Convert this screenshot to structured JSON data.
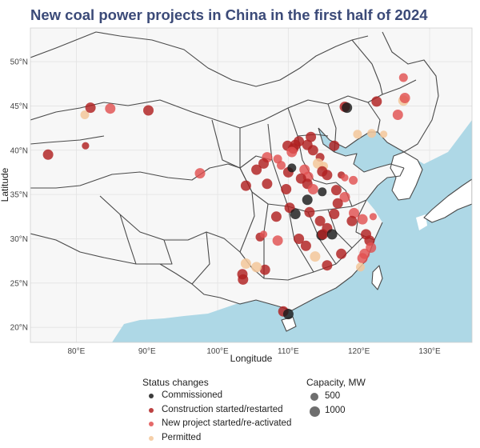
{
  "title": "New coal power projects in China in the first half of 2024",
  "axes": {
    "x_title": "Longitude",
    "y_title": "Latitude",
    "x_range": [
      73.5,
      136
    ],
    "y_range": [
      18.3,
      53.8
    ],
    "x_ticks": [
      {
        "value": 80,
        "label": "80°E"
      },
      {
        "value": 90,
        "label": "90°E"
      },
      {
        "value": 100,
        "label": "100°E"
      },
      {
        "value": 110,
        "label": "110°E"
      },
      {
        "value": 120,
        "label": "120°E"
      },
      {
        "value": 130,
        "label": "130°E"
      }
    ],
    "y_ticks": [
      {
        "value": 20,
        "label": "20°N"
      },
      {
        "value": 25,
        "label": "25°N"
      },
      {
        "value": 30,
        "label": "30°N"
      },
      {
        "value": 35,
        "label": "35°N"
      },
      {
        "value": 40,
        "label": "40°N"
      },
      {
        "value": 45,
        "label": "45°N"
      },
      {
        "value": 50,
        "label": "50°N"
      }
    ],
    "grid": true
  },
  "colors": {
    "land": "#ffffff",
    "sea": "#aed8e6",
    "border": "#4a4a4a",
    "grid": "#e3e3e3",
    "panel_bg": "#f7f7f7"
  },
  "legend": {
    "status_title": "Status changes",
    "status_items": [
      {
        "key": "commissioned",
        "label": "Commissioned",
        "color": "#1a1a1a"
      },
      {
        "key": "construction",
        "label": "Construction started/restarted",
        "color": "#b02020"
      },
      {
        "key": "new",
        "label": "New project started/re-activated",
        "color": "#e05050"
      },
      {
        "key": "permitted",
        "label": "Permitted",
        "color": "#f3c79a"
      }
    ],
    "capacity_title": "Capacity, MW",
    "capacity_items": [
      {
        "label": "500",
        "value": 500
      },
      {
        "label": "1000",
        "value": 1000
      }
    ]
  },
  "chart_data": {
    "type": "scatter",
    "title": "New coal power projects in China in the first half of 2024",
    "xlabel": "Longitude",
    "ylabel": "Latitude",
    "xlim": [
      73.5,
      136
    ],
    "ylim": [
      18.3,
      53.8
    ],
    "size_variable": "Capacity, MW",
    "color_variable": "Status changes",
    "points": [
      {
        "lon": 76.0,
        "lat": 39.5,
        "status": "construction",
        "mw": 1000
      },
      {
        "lon": 81.2,
        "lat": 44.0,
        "status": "permitted",
        "mw": 600
      },
      {
        "lon": 82.0,
        "lat": 44.8,
        "status": "construction",
        "mw": 1000
      },
      {
        "lon": 84.8,
        "lat": 44.7,
        "status": "new",
        "mw": 1000
      },
      {
        "lon": 90.2,
        "lat": 44.5,
        "status": "construction",
        "mw": 1000
      },
      {
        "lon": 81.3,
        "lat": 40.5,
        "status": "construction",
        "mw": 300
      },
      {
        "lon": 97.5,
        "lat": 37.4,
        "status": "new",
        "mw": 1000
      },
      {
        "lon": 118.0,
        "lat": 44.9,
        "status": "construction",
        "mw": 1000
      },
      {
        "lon": 118.3,
        "lat": 44.8,
        "status": "commissioned",
        "mw": 1000
      },
      {
        "lon": 122.5,
        "lat": 45.5,
        "status": "construction",
        "mw": 1000
      },
      {
        "lon": 126.3,
        "lat": 48.2,
        "status": "new",
        "mw": 600
      },
      {
        "lon": 126.3,
        "lat": 45.6,
        "status": "permitted",
        "mw": 1000
      },
      {
        "lon": 126.5,
        "lat": 45.9,
        "status": "new",
        "mw": 1000
      },
      {
        "lon": 125.5,
        "lat": 44.0,
        "status": "new",
        "mw": 1000
      },
      {
        "lon": 123.5,
        "lat": 41.8,
        "status": "permitted",
        "mw": 300
      },
      {
        "lon": 121.8,
        "lat": 41.9,
        "status": "permitted",
        "mw": 600
      },
      {
        "lon": 119.8,
        "lat": 41.8,
        "status": "permitted",
        "mw": 600
      },
      {
        "lon": 116.5,
        "lat": 40.5,
        "status": "construction",
        "mw": 1000
      },
      {
        "lon": 113.2,
        "lat": 41.5,
        "status": "construction",
        "mw": 1000
      },
      {
        "lon": 112.7,
        "lat": 40.6,
        "status": "construction",
        "mw": 1000
      },
      {
        "lon": 111.5,
        "lat": 41.0,
        "status": "construction",
        "mw": 1000
      },
      {
        "lon": 111.0,
        "lat": 40.6,
        "status": "construction",
        "mw": 1000
      },
      {
        "lon": 110.7,
        "lat": 40.2,
        "status": "construction",
        "mw": 1000
      },
      {
        "lon": 109.9,
        "lat": 40.5,
        "status": "construction",
        "mw": 1000
      },
      {
        "lon": 110.5,
        "lat": 39.8,
        "status": "new",
        "mw": 1000
      },
      {
        "lon": 107.0,
        "lat": 39.2,
        "status": "new",
        "mw": 1000
      },
      {
        "lon": 106.5,
        "lat": 38.5,
        "status": "construction",
        "mw": 1000
      },
      {
        "lon": 105.5,
        "lat": 37.8,
        "status": "construction",
        "mw": 1000
      },
      {
        "lon": 108.5,
        "lat": 39.0,
        "status": "new",
        "mw": 600
      },
      {
        "lon": 109.0,
        "lat": 38.3,
        "status": "new",
        "mw": 600
      },
      {
        "lon": 110.0,
        "lat": 37.5,
        "status": "construction",
        "mw": 1000
      },
      {
        "lon": 110.5,
        "lat": 38.0,
        "status": "commissioned",
        "mw": 600
      },
      {
        "lon": 112.3,
        "lat": 37.8,
        "status": "new",
        "mw": 1000
      },
      {
        "lon": 113.5,
        "lat": 40.0,
        "status": "construction",
        "mw": 1000
      },
      {
        "lon": 114.5,
        "lat": 39.2,
        "status": "construction",
        "mw": 600
      },
      {
        "lon": 114.2,
        "lat": 38.5,
        "status": "permitted",
        "mw": 1000
      },
      {
        "lon": 115.0,
        "lat": 38.2,
        "status": "permitted",
        "mw": 600
      },
      {
        "lon": 114.8,
        "lat": 37.6,
        "status": "construction",
        "mw": 1000
      },
      {
        "lon": 115.5,
        "lat": 37.2,
        "status": "construction",
        "mw": 1000
      },
      {
        "lon": 112.8,
        "lat": 37.0,
        "status": "new",
        "mw": 1000
      },
      {
        "lon": 111.8,
        "lat": 36.8,
        "status": "construction",
        "mw": 1000
      },
      {
        "lon": 104.0,
        "lat": 36.0,
        "status": "construction",
        "mw": 1000
      },
      {
        "lon": 107.0,
        "lat": 36.2,
        "status": "construction",
        "mw": 1000
      },
      {
        "lon": 109.7,
        "lat": 35.6,
        "status": "construction",
        "mw": 1000
      },
      {
        "lon": 112.7,
        "lat": 36.2,
        "status": "construction",
        "mw": 1000
      },
      {
        "lon": 113.5,
        "lat": 35.6,
        "status": "new",
        "mw": 1000
      },
      {
        "lon": 114.8,
        "lat": 35.3,
        "status": "commissioned",
        "mw": 600
      },
      {
        "lon": 117.5,
        "lat": 37.2,
        "status": "construction",
        "mw": 300
      },
      {
        "lon": 118.0,
        "lat": 36.9,
        "status": "new",
        "mw": 300
      },
      {
        "lon": 119.2,
        "lat": 36.6,
        "status": "new",
        "mw": 600
      },
      {
        "lon": 116.8,
        "lat": 35.5,
        "status": "construction",
        "mw": 1000
      },
      {
        "lon": 118.0,
        "lat": 34.7,
        "status": "new",
        "mw": 1000
      },
      {
        "lon": 117.0,
        "lat": 34.0,
        "status": "construction",
        "mw": 1000
      },
      {
        "lon": 119.3,
        "lat": 32.9,
        "status": "new",
        "mw": 1000
      },
      {
        "lon": 119.0,
        "lat": 32.0,
        "status": "construction",
        "mw": 1000
      },
      {
        "lon": 120.5,
        "lat": 32.2,
        "status": "new",
        "mw": 1000
      },
      {
        "lon": 116.5,
        "lat": 32.8,
        "status": "construction",
        "mw": 1000
      },
      {
        "lon": 112.7,
        "lat": 34.4,
        "status": "commissioned",
        "mw": 1000
      },
      {
        "lon": 110.2,
        "lat": 33.5,
        "status": "construction",
        "mw": 1000
      },
      {
        "lon": 111.0,
        "lat": 32.8,
        "status": "commissioned",
        "mw": 1000
      },
      {
        "lon": 113.0,
        "lat": 33.0,
        "status": "construction",
        "mw": 1000
      },
      {
        "lon": 114.5,
        "lat": 32.0,
        "status": "construction",
        "mw": 1000
      },
      {
        "lon": 115.5,
        "lat": 31.2,
        "status": "construction",
        "mw": 1000
      },
      {
        "lon": 114.7,
        "lat": 30.4,
        "status": "commissioned",
        "mw": 1000
      },
      {
        "lon": 114.9,
        "lat": 30.5,
        "status": "construction",
        "mw": 1000
      },
      {
        "lon": 116.2,
        "lat": 30.5,
        "status": "commissioned",
        "mw": 1000
      },
      {
        "lon": 121.0,
        "lat": 30.5,
        "status": "construction",
        "mw": 1000
      },
      {
        "lon": 121.5,
        "lat": 29.8,
        "status": "construction",
        "mw": 1000
      },
      {
        "lon": 121.7,
        "lat": 29.0,
        "status": "new",
        "mw": 1000
      },
      {
        "lon": 120.8,
        "lat": 28.3,
        "status": "new",
        "mw": 1000
      },
      {
        "lon": 120.5,
        "lat": 27.8,
        "status": "new",
        "mw": 1000
      },
      {
        "lon": 120.2,
        "lat": 26.8,
        "status": "permitted",
        "mw": 600
      },
      {
        "lon": 108.3,
        "lat": 32.5,
        "status": "construction",
        "mw": 1000
      },
      {
        "lon": 106.0,
        "lat": 30.2,
        "status": "construction",
        "mw": 600
      },
      {
        "lon": 108.5,
        "lat": 29.8,
        "status": "new",
        "mw": 1000
      },
      {
        "lon": 111.5,
        "lat": 30.0,
        "status": "construction",
        "mw": 1000
      },
      {
        "lon": 112.5,
        "lat": 29.2,
        "status": "construction",
        "mw": 1000
      },
      {
        "lon": 113.8,
        "lat": 28.0,
        "status": "permitted",
        "mw": 1000
      },
      {
        "lon": 117.5,
        "lat": 28.3,
        "status": "construction",
        "mw": 1000
      },
      {
        "lon": 115.5,
        "lat": 27.0,
        "status": "construction",
        "mw": 1000
      },
      {
        "lon": 106.7,
        "lat": 26.5,
        "status": "construction",
        "mw": 1000
      },
      {
        "lon": 105.5,
        "lat": 26.8,
        "status": "permitted",
        "mw": 1000
      },
      {
        "lon": 104.0,
        "lat": 27.2,
        "status": "permitted",
        "mw": 1000
      },
      {
        "lon": 103.5,
        "lat": 26.0,
        "status": "construction",
        "mw": 1000
      },
      {
        "lon": 103.6,
        "lat": 25.4,
        "status": "construction",
        "mw": 1000
      },
      {
        "lon": 109.3,
        "lat": 21.8,
        "status": "construction",
        "mw": 1000
      },
      {
        "lon": 110.0,
        "lat": 21.5,
        "status": "commissioned",
        "mw": 1000
      },
      {
        "lon": 106.5,
        "lat": 30.5,
        "status": "new",
        "mw": 300
      },
      {
        "lon": 122.0,
        "lat": 32.5,
        "status": "new",
        "mw": 300
      }
    ]
  }
}
